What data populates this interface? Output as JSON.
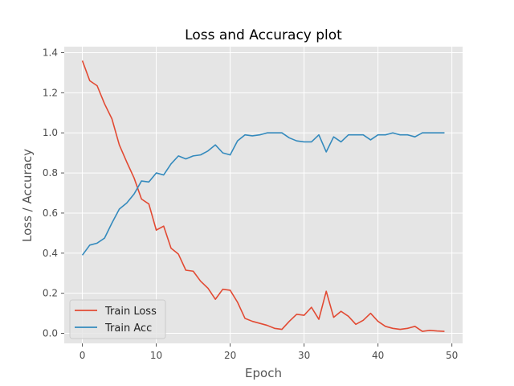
{
  "chart_data": {
    "type": "line",
    "title": "Loss and Accuracy plot",
    "xlabel": "Epoch",
    "ylabel": "Loss / Accuracy",
    "xlim": [
      -2.45,
      51.45
    ],
    "ylim": [
      -0.05,
      1.43
    ],
    "xticks": [
      0,
      10,
      20,
      30,
      40,
      50
    ],
    "yticks": [
      0.0,
      0.2,
      0.4,
      0.6,
      0.8,
      1.0,
      1.2,
      1.4
    ],
    "ytick_labels": [
      "0.0",
      "0.2",
      "0.4",
      "0.6",
      "0.8",
      "1.0",
      "1.2",
      "1.4"
    ],
    "grid": true,
    "legend_position": "lower-left",
    "x": [
      0,
      1,
      2,
      3,
      4,
      5,
      6,
      7,
      8,
      9,
      10,
      11,
      12,
      13,
      14,
      15,
      16,
      17,
      18,
      19,
      20,
      21,
      22,
      23,
      24,
      25,
      26,
      27,
      28,
      29,
      30,
      31,
      32,
      33,
      34,
      35,
      36,
      37,
      38,
      39,
      40,
      41,
      42,
      43,
      44,
      45,
      46,
      47,
      48,
      49
    ],
    "series": [
      {
        "name": "Train Loss",
        "color": "#E24A33",
        "values": [
          1.36,
          1.26,
          1.235,
          1.145,
          1.07,
          0.94,
          0.855,
          0.775,
          0.67,
          0.645,
          0.515,
          0.535,
          0.425,
          0.395,
          0.315,
          0.31,
          0.26,
          0.225,
          0.17,
          0.22,
          0.215,
          0.155,
          0.075,
          0.06,
          0.05,
          0.04,
          0.025,
          0.02,
          0.06,
          0.095,
          0.09,
          0.13,
          0.07,
          0.21,
          0.08,
          0.11,
          0.085,
          0.045,
          0.065,
          0.1,
          0.06,
          0.035,
          0.025,
          0.02,
          0.025,
          0.035,
          0.01,
          0.015,
          0.012,
          0.01
        ]
      },
      {
        "name": "Train Acc",
        "color": "#348ABD",
        "values": [
          0.39,
          0.44,
          0.45,
          0.475,
          0.55,
          0.62,
          0.65,
          0.695,
          0.76,
          0.755,
          0.8,
          0.79,
          0.845,
          0.885,
          0.87,
          0.885,
          0.89,
          0.91,
          0.94,
          0.9,
          0.89,
          0.96,
          0.99,
          0.985,
          0.99,
          1.0,
          1.0,
          1.0,
          0.975,
          0.96,
          0.955,
          0.955,
          0.99,
          0.905,
          0.98,
          0.955,
          0.99,
          0.99,
          0.99,
          0.965,
          0.99,
          0.99,
          1.0,
          0.99,
          0.99,
          0.98,
          1.0,
          1.0,
          1.0,
          1.0
        ]
      }
    ]
  }
}
